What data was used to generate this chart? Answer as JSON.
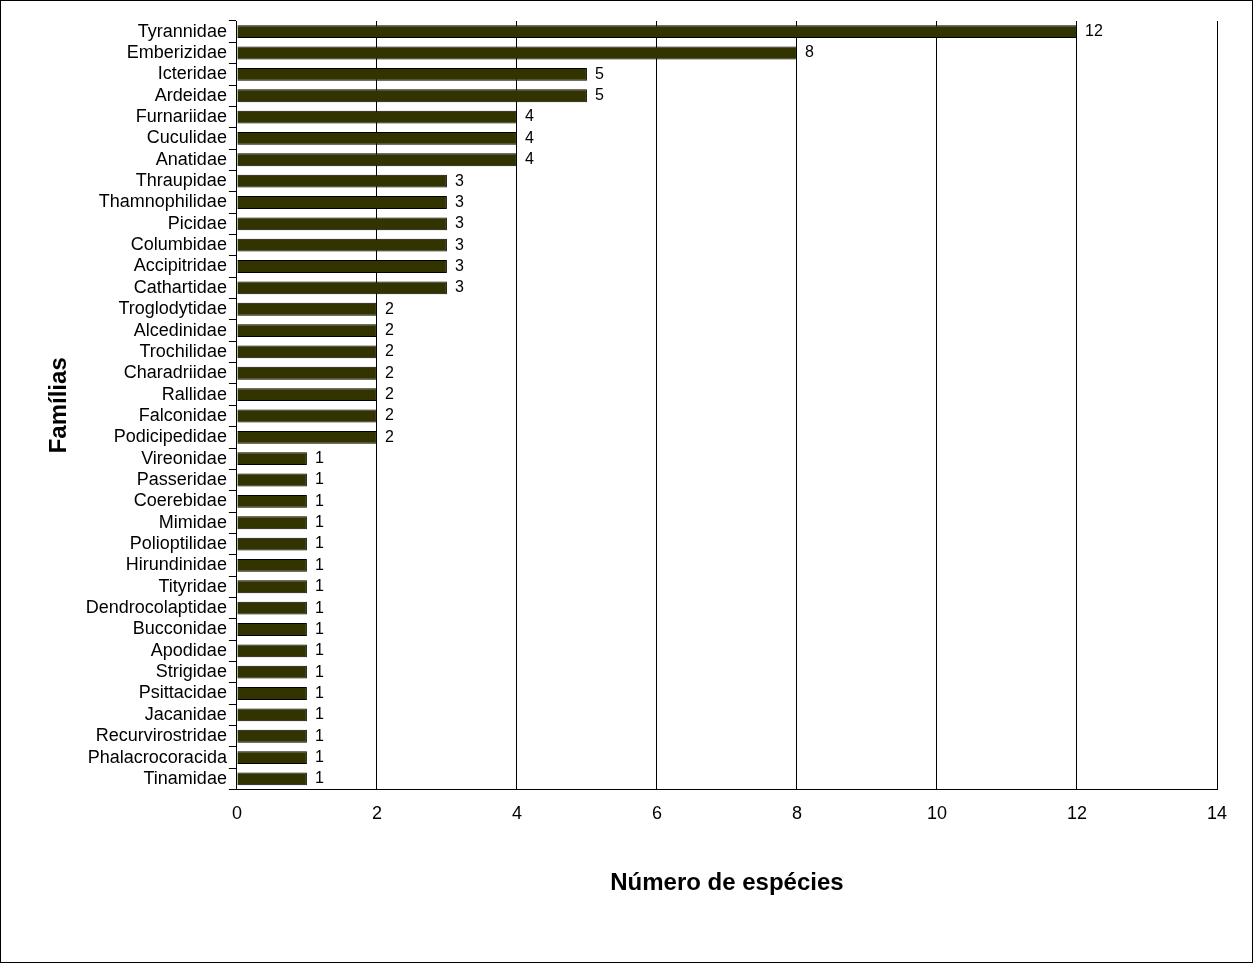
{
  "chart_data": {
    "type": "bar",
    "orientation": "horizontal",
    "xlabel": "Número de espécies",
    "ylabel": "Famílias",
    "categories": [
      "Tyrannidae",
      "Emberizidae",
      "Icteridae",
      "Ardeidae",
      "Furnariidae",
      "Cuculidae",
      "Anatidae",
      "Thraupidae",
      "Thamnophilidae",
      "Picidae",
      "Columbidae",
      "Accipitridae",
      "Cathartidae",
      "Troglodytidae",
      "Alcedinidae",
      "Trochilidae",
      "Charadriidae",
      "Rallidae",
      "Falconidae",
      "Podicipedidae",
      "Vireonidae",
      "Passeridae",
      "Coerebidae",
      "Mimidae",
      "Polioptilidae",
      "Hirundinidae",
      "Tityridae",
      "Dendrocolaptidae",
      "Bucconidae",
      "Apodidae",
      "Strigidae",
      "Psittacidae",
      "Jacanidae",
      "Recurvirostridae",
      "Phalacrocoracida",
      "Tinamidae"
    ],
    "values": [
      12,
      8,
      5,
      5,
      4,
      4,
      4,
      3,
      3,
      3,
      3,
      3,
      3,
      2,
      2,
      2,
      2,
      2,
      2,
      2,
      1,
      1,
      1,
      1,
      1,
      1,
      1,
      1,
      1,
      1,
      1,
      1,
      1,
      1,
      1,
      1
    ],
    "color": "#333300",
    "xlim": [
      0,
      14
    ],
    "xticks": [
      0,
      2,
      4,
      6,
      8,
      10,
      12,
      14
    ],
    "grid": "x",
    "legend": false,
    "data_labels": true
  }
}
